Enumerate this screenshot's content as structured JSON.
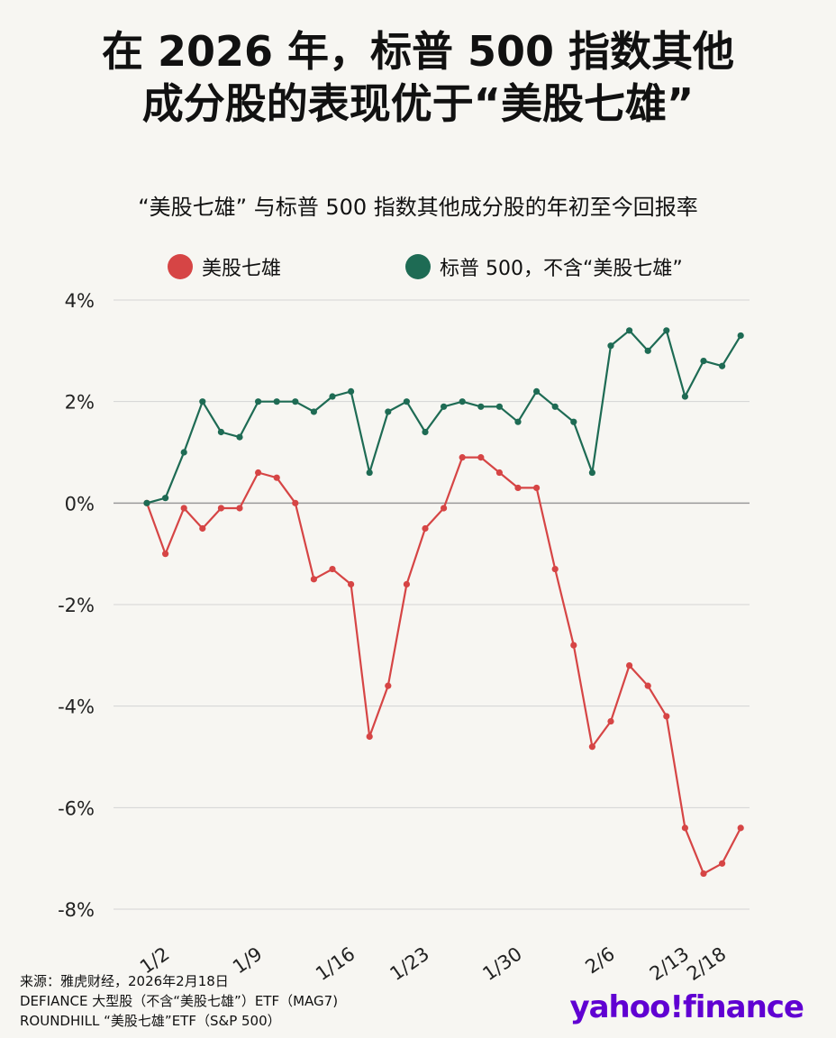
{
  "title_line1": "在 2026 年，标普 500 指数其他",
  "title_line2": "成分股的表现优于“美股七雄”",
  "subtitle": "“美股七雄” 与标普 500 指数其他成分股的年初至今回报率",
  "source_lines": [
    "来源：雅虎财经，2026年2月18日",
    "DEFIANCE 大型股（不含“美股七雄”）ETF（MAG7)",
    "ROUNDHILL “美股七雄”ETF（S&P 500）"
  ],
  "brand": "yahoo!finance",
  "chart_data": {
    "type": "line",
    "ylim": [
      -8,
      4
    ],
    "yticks": [
      "4%",
      "2%",
      "0%",
      "-2%",
      "-4%",
      "-6%",
      "-8%"
    ],
    "ytick_values": [
      4,
      2,
      0,
      -2,
      -4,
      -6,
      -8
    ],
    "x_tick_labels": [
      {
        "label": "1/2",
        "index": 1
      },
      {
        "label": "1/9",
        "index": 6
      },
      {
        "label": "1/16",
        "index": 11
      },
      {
        "label": "1/23",
        "index": 15
      },
      {
        "label": "1/30",
        "index": 20
      },
      {
        "label": "2/6",
        "index": 25
      },
      {
        "label": "2/13",
        "index": 29
      },
      {
        "label": "2/18",
        "index": 31
      }
    ],
    "series": [
      {
        "name": "美股七雄",
        "color": "#d64545",
        "values": [
          0,
          -1.0,
          -0.1,
          -0.5,
          -0.1,
          -0.1,
          0.6,
          0.5,
          0.0,
          -1.5,
          -1.3,
          -1.6,
          -4.6,
          -3.6,
          -1.6,
          -0.5,
          -0.1,
          0.9,
          0.9,
          0.6,
          0.3,
          0.3,
          -1.3,
          -2.8,
          -4.8,
          -4.3,
          -3.2,
          -3.6,
          -4.2,
          -6.4,
          -7.3,
          -7.1,
          -6.4
        ]
      },
      {
        "name": "标普 500，不含“美股七雄”",
        "color": "#1e6b54",
        "values": [
          0,
          0.1,
          1.0,
          2.0,
          1.4,
          1.3,
          2.0,
          2.0,
          2.0,
          1.8,
          2.1,
          2.2,
          0.6,
          1.8,
          2.0,
          1.4,
          1.9,
          2.0,
          1.9,
          1.9,
          1.6,
          2.2,
          1.9,
          1.6,
          0.6,
          3.1,
          3.4,
          3.0,
          3.4,
          2.1,
          2.8,
          2.7,
          3.3
        ]
      }
    ]
  }
}
